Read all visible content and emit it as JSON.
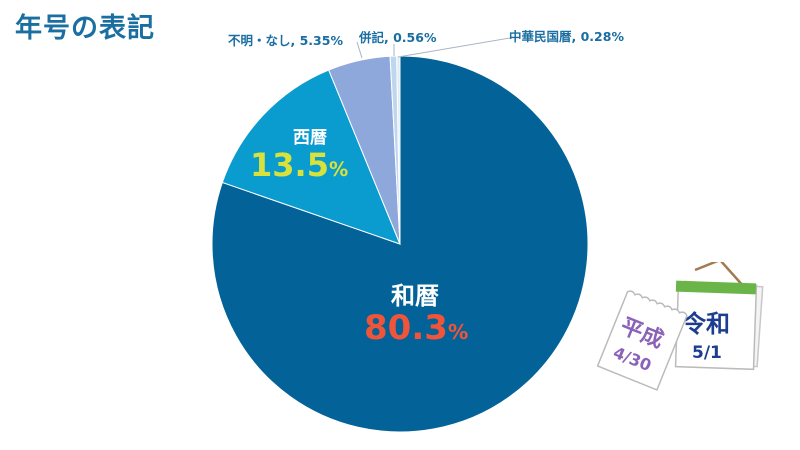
{
  "title": "年号の表記",
  "chart_data": {
    "type": "pie",
    "title": "年号の表記",
    "start_angle_deg": 0,
    "direction": "clockwise",
    "slices": [
      {
        "label": "和暦",
        "value": 80.3,
        "display": "80.3",
        "color": "#036297"
      },
      {
        "label": "西暦",
        "value": 13.5,
        "display": "13.5",
        "color": "#0a9bcf"
      },
      {
        "label": "不明・なし",
        "value": 5.35,
        "display": "5.35%",
        "color": "#8ea8dc"
      },
      {
        "label": "併記",
        "value": 0.56,
        "display": "0.56%",
        "color": "#bfd6ef"
      },
      {
        "label": "中華民国暦",
        "value": 0.28,
        "display": "0.28%",
        "color": "#dfeaf5"
      }
    ],
    "legend": "none (direct labels)"
  },
  "labels": {
    "wareki_name": "和暦",
    "wareki_value": "80.3",
    "seireki_name": "西暦",
    "seireki_value": "13.5",
    "percent": "%",
    "fumei": "不明・なし, 5.35%",
    "heiki": "併記, 0.56%",
    "chuka": "中華民国暦, 0.28%"
  },
  "illustration": {
    "left_page_era": "平成",
    "left_page_date": "4/30",
    "right_page_era": "令和",
    "right_page_date": "5/1"
  },
  "colors": {
    "title": "#1a6ea1",
    "wareki_value": "#f0553a",
    "seireki_value": "#d8e23a",
    "heisei_text": "#8a62b8",
    "reiwa_text": "#1d3d8f",
    "calendar_green": "#6bb548"
  }
}
